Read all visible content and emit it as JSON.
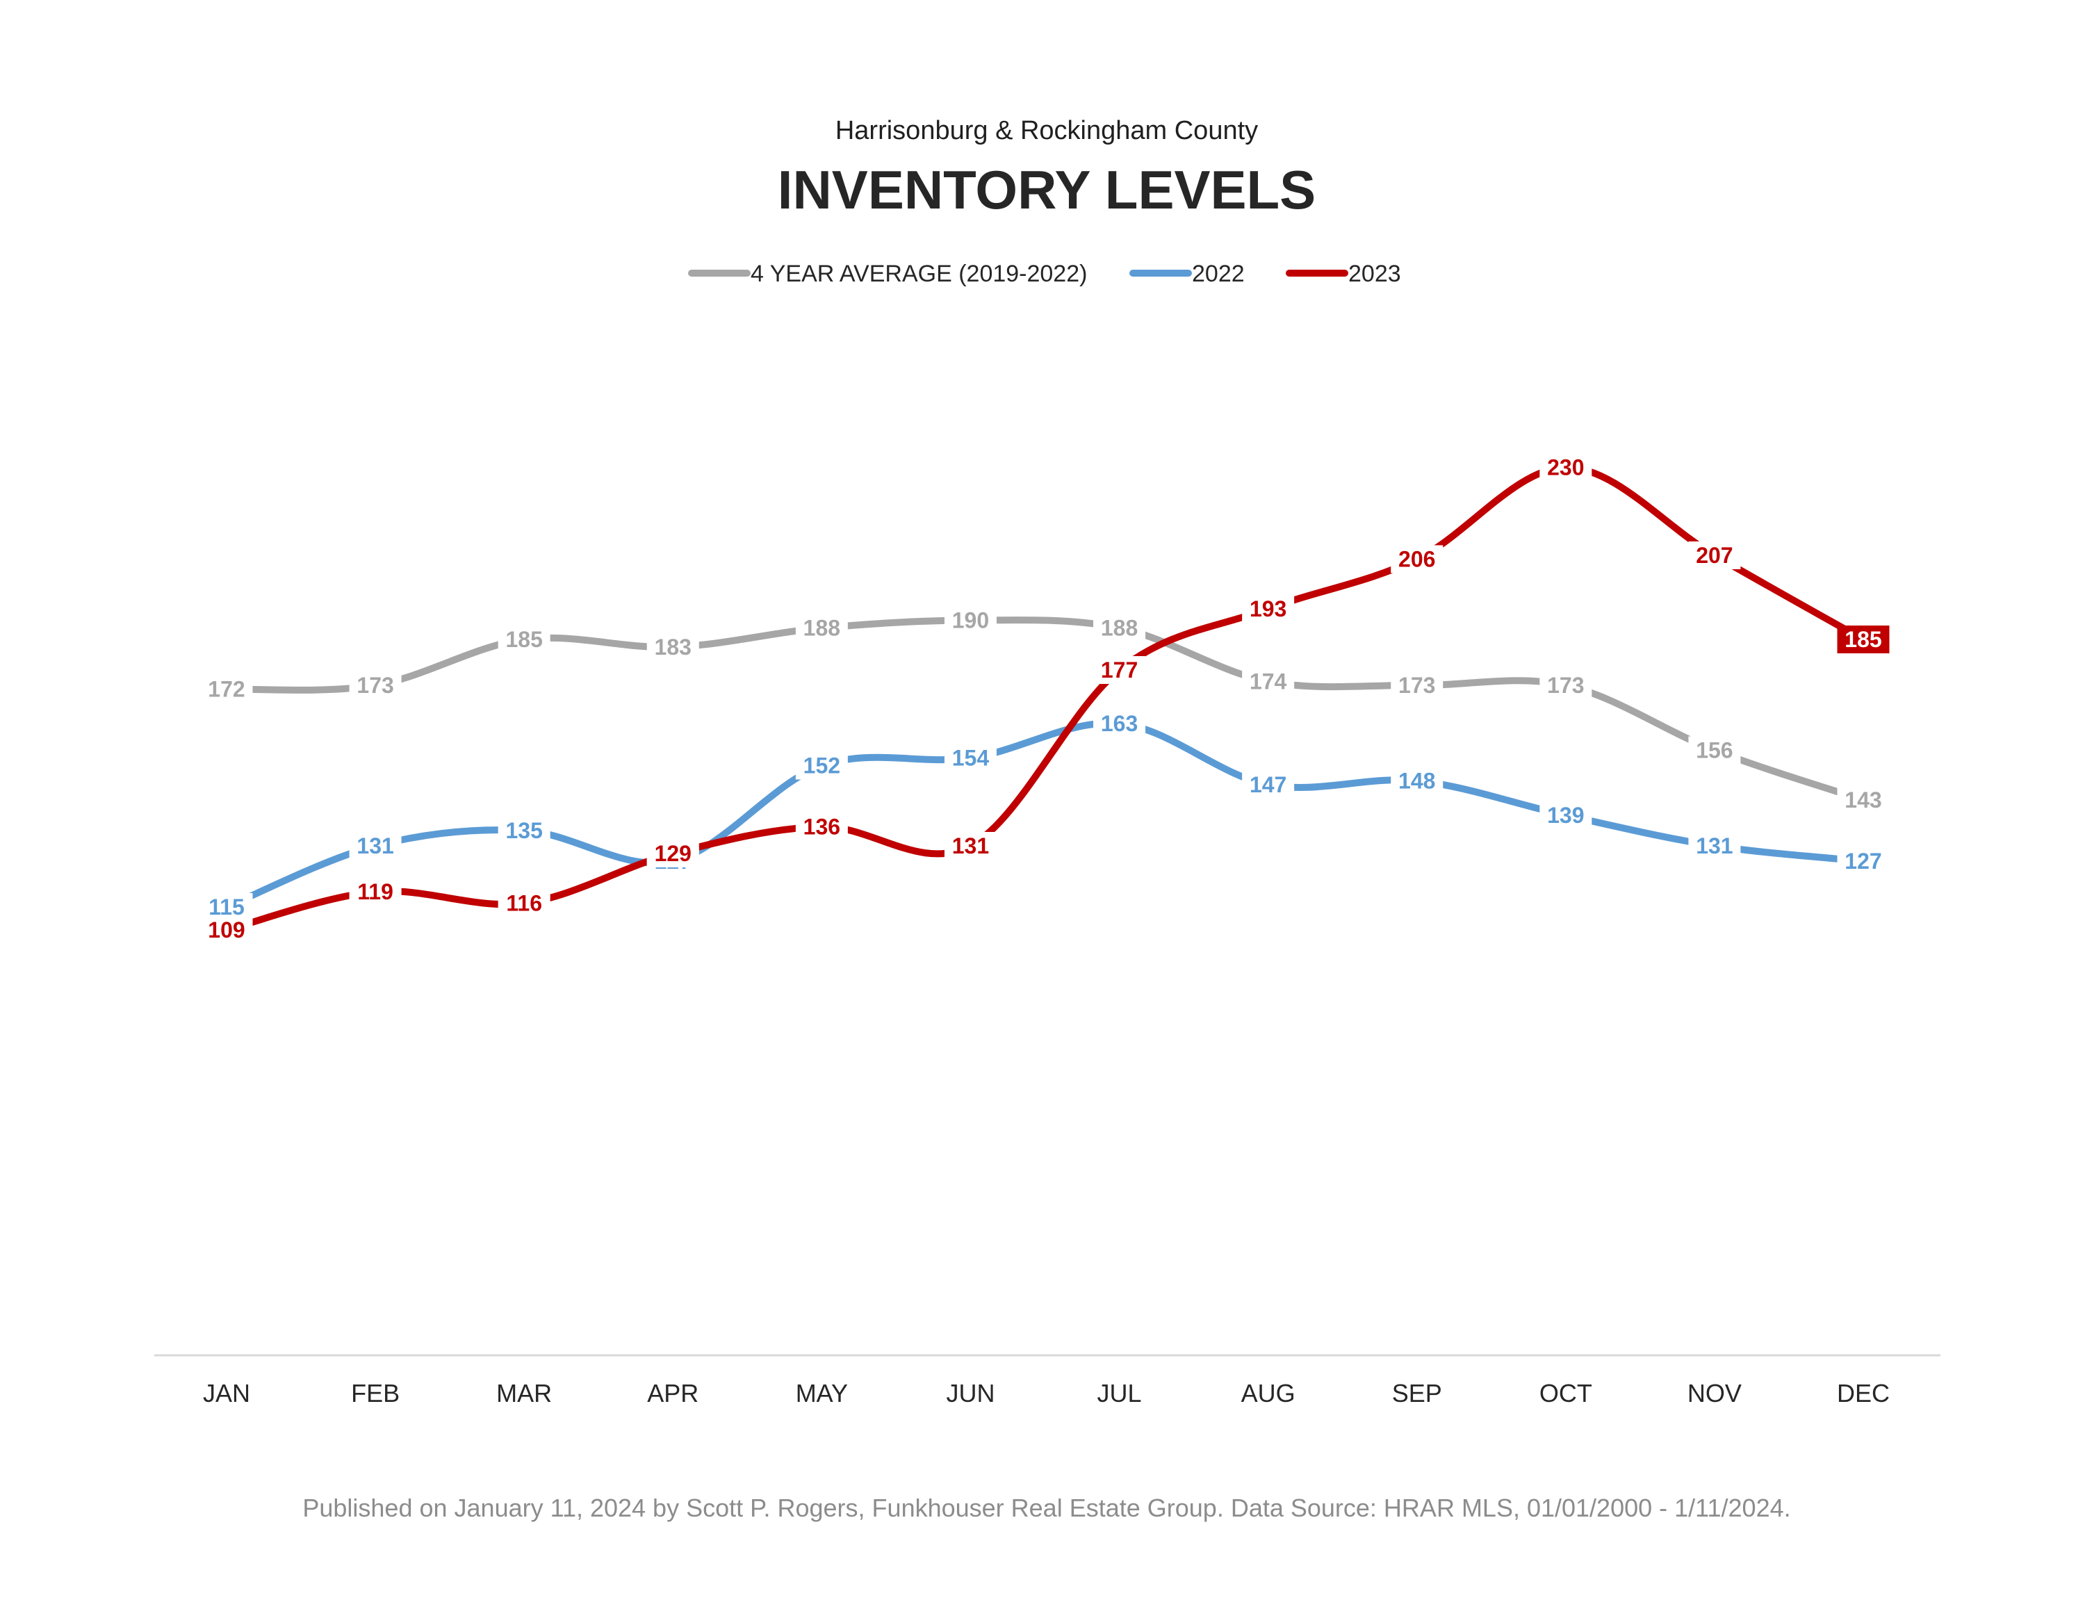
{
  "header": {
    "subtitle": "Harrisonburg & Rockingham County",
    "title": "INVENTORY LEVELS"
  },
  "footer": {
    "note": "Published on January 11, 2024 by Scott P. Rogers, Funkhouser Real Estate Group. Data Source: HRAR MLS, 01/01/2000 - 1/11/2024."
  },
  "chart_data": {
    "type": "line",
    "title": "INVENTORY LEVELS",
    "subtitle": "Harrisonburg & Rockingham County",
    "categories": [
      "JAN",
      "FEB",
      "MAR",
      "APR",
      "MAY",
      "JUN",
      "JUL",
      "AUG",
      "SEP",
      "OCT",
      "NOV",
      "DEC"
    ],
    "series": [
      {
        "name": "4 YEAR AVERAGE (2019-2022)",
        "color": "#a6a6a6",
        "values": [
          172,
          173,
          185,
          183,
          188,
          190,
          188,
          174,
          173,
          173,
          156,
          143
        ]
      },
      {
        "name": "2022",
        "color": "#5b9bd5",
        "values": [
          115,
          131,
          135,
          127,
          152,
          154,
          163,
          147,
          148,
          139,
          131,
          127
        ]
      },
      {
        "name": "2023",
        "color": "#c00000",
        "values": [
          109,
          119,
          116,
          129,
          136,
          131,
          177,
          193,
          206,
          230,
          207,
          185
        ]
      }
    ],
    "highlighted_last_value": "185",
    "xlabel": "",
    "ylabel": "",
    "y_axis_visible": false,
    "grid": false,
    "legend_position": "top-center",
    "data_labels": true,
    "smoothed": true
  }
}
